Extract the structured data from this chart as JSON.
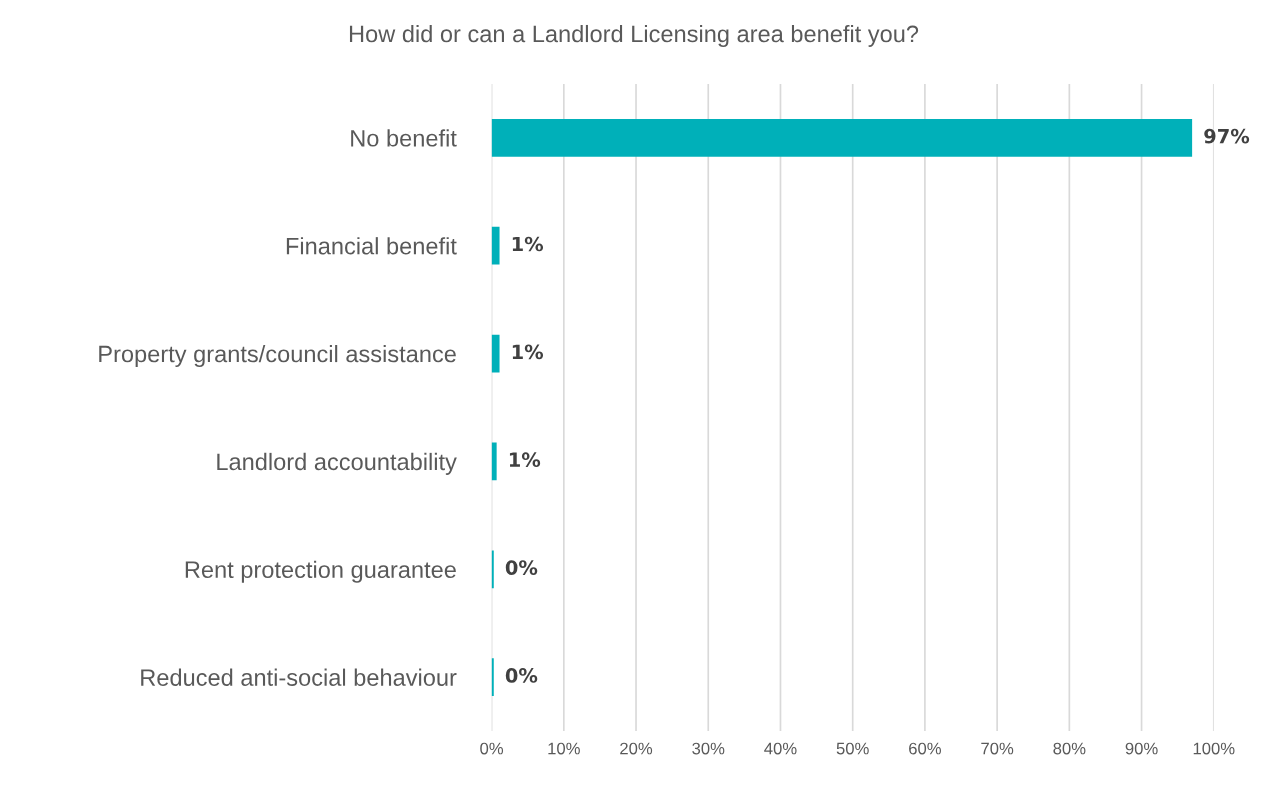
{
  "chart_data": {
    "type": "bar",
    "orientation": "horizontal",
    "title": "How did or can a Landlord Licensing area benefit you?",
    "categories": [
      "No benefit",
      "Financial benefit",
      "Property grants/council assistance",
      "Landlord accountability",
      "Rent protection guarantee",
      "Reduced anti-social behaviour"
    ],
    "values": [
      97,
      1.1,
      1.1,
      0.7,
      0.3,
      0.3
    ],
    "value_labels": [
      "97%",
      "1%",
      "1%",
      "1%",
      "0%",
      "0%"
    ],
    "color": "#00b0b9",
    "xlim": [
      0,
      100
    ],
    "xticks": [
      {
        "value": 0,
        "label": "0%"
      },
      {
        "value": 10,
        "label": "10%"
      },
      {
        "value": 20,
        "label": "20%"
      },
      {
        "value": 30,
        "label": "30%"
      },
      {
        "value": 40,
        "label": "40%"
      },
      {
        "value": 50,
        "label": "50%"
      },
      {
        "value": 60,
        "label": "60%"
      },
      {
        "value": 70,
        "label": "70%"
      },
      {
        "value": 80,
        "label": "80%"
      },
      {
        "value": 90,
        "label": "90%"
      },
      {
        "value": 100,
        "label": "100%"
      }
    ],
    "grid": "x"
  }
}
